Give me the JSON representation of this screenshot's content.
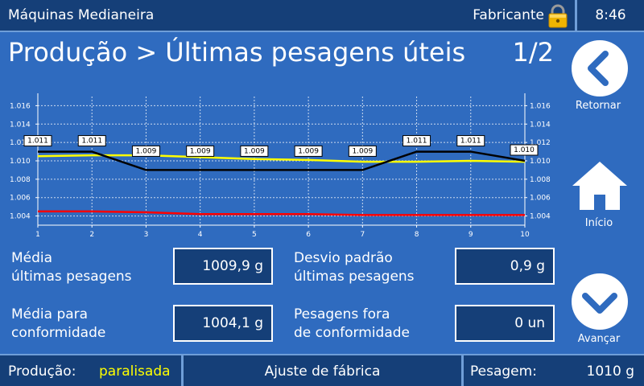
{
  "header": {
    "app_title": "Máquinas Medianeira",
    "user": "Fabricante",
    "time": "8:46"
  },
  "page": {
    "title": "Produção > Últimas pesagens úteis",
    "page_indicator": "1/2"
  },
  "nav": {
    "back_label": "Retornar",
    "home_label": "Início",
    "next_label": "Avançar"
  },
  "stats": {
    "avg_last_label_1": "Média",
    "avg_last_label_2": "últimas pesagens",
    "avg_last_value": "1009,9 g",
    "stddev_label_1": "Desvio padrão",
    "stddev_label_2": "últimas pesagens",
    "stddev_value": "0,9 g",
    "avg_conf_label_1": "Média para",
    "avg_conf_label_2": "conformidade",
    "avg_conf_value": "1004,1 g",
    "out_conf_label_1": "Pesagens fora",
    "out_conf_label_2": "de conformidade",
    "out_conf_value": "0 un"
  },
  "footer": {
    "production_label": "Produção:",
    "production_status": "paralisada",
    "mode": "Ajuste de fábrica",
    "weight_label": "Pesagem:",
    "weight_value": "1010 g"
  },
  "colors": {
    "background": "#2f6bbf",
    "bar": "#153f78",
    "status_text": "#ffff00",
    "weight_line": "#000000",
    "average_line": "#ffff00",
    "conformity_line": "#ff0000"
  },
  "chart_data": {
    "type": "line",
    "x": [
      1,
      2,
      3,
      4,
      5,
      6,
      7,
      8,
      9,
      10
    ],
    "xlim": [
      1,
      10
    ],
    "ylim": [
      1.003,
      1.017
    ],
    "yticks": [
      1.004,
      1.006,
      1.008,
      1.01,
      1.012,
      1.014,
      1.016
    ],
    "ytick_labels": [
      "1.004",
      "1.006",
      "1.008",
      "1.010",
      "1.012",
      "1.014",
      "1.016"
    ],
    "grid": true,
    "series": [
      {
        "color": "#000000",
        "values": [
          1.011,
          1.011,
          1.009,
          1.009,
          1.009,
          1.009,
          1.009,
          1.011,
          1.011,
          1.01
        ],
        "labels": [
          "1.011",
          "1.011",
          "1.009",
          "1.009",
          "1.009",
          "1.009",
          "1.009",
          "1.011",
          "1.011",
          "1.010"
        ]
      },
      {
        "color": "#ffff00",
        "values": [
          1.0105,
          1.0106,
          1.0106,
          1.0104,
          1.0102,
          1.0101,
          1.0099,
          1.0099,
          1.01,
          1.0099
        ]
      },
      {
        "color": "#ff0000",
        "values": [
          1.0045,
          1.0045,
          1.0044,
          1.0042,
          1.0042,
          1.0042,
          1.0041,
          1.0041,
          1.0041,
          1.0041
        ]
      }
    ]
  }
}
